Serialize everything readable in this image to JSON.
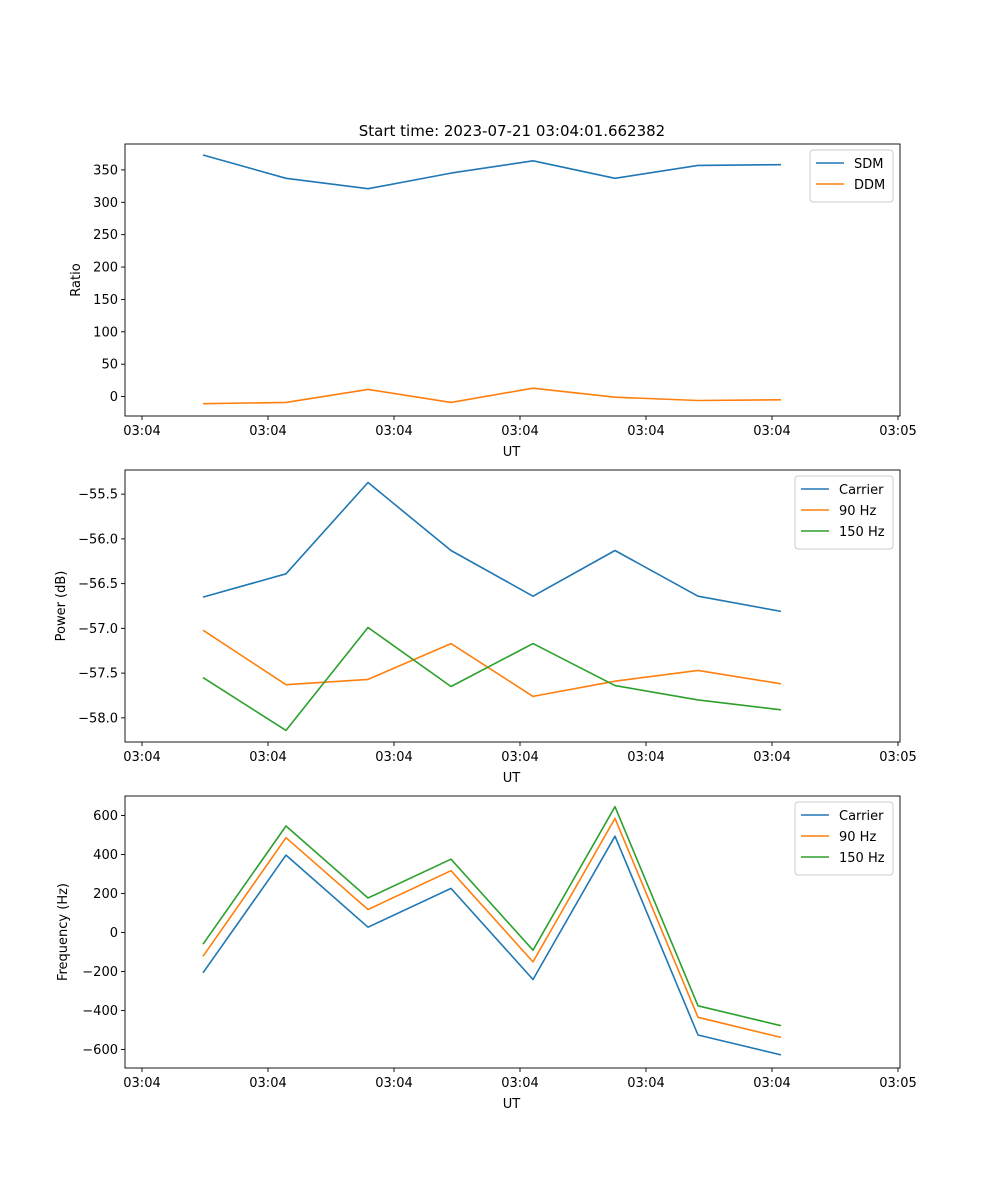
{
  "figure_title": "Start time: 2023-07-21 03:04:01.662382",
  "chart_data": [
    {
      "type": "line",
      "title": "Start time: 2023-07-21 03:04:01.662382",
      "xlabel": "UT",
      "ylabel": "Ratio",
      "x_tick_labels": [
        "03:04",
        "03:04",
        "03:04",
        "03:04",
        "03:04",
        "03:04",
        "03:05"
      ],
      "y_ticks": [
        0,
        50,
        100,
        150,
        200,
        250,
        300,
        350
      ],
      "y_tick_labels": [
        "0",
        "50",
        "100",
        "150",
        "200",
        "250",
        "300",
        "350"
      ],
      "ylim": [
        -30,
        390
      ],
      "legend": "top-right",
      "series": [
        {
          "name": "SDM",
          "color": "#1f77b4",
          "values": [
            373,
            337,
            321,
            345,
            364,
            337,
            357,
            358
          ]
        },
        {
          "name": "DDM",
          "color": "#ff7f0e",
          "values": [
            -11,
            -9,
            11,
            -9,
            13,
            -1,
            -6,
            -5
          ]
        }
      ]
    },
    {
      "type": "line",
      "title": "",
      "xlabel": "UT",
      "ylabel": "Power (dB)",
      "x_tick_labels": [
        "03:04",
        "03:04",
        "03:04",
        "03:04",
        "03:04",
        "03:04",
        "03:05"
      ],
      "y_ticks": [
        -58.0,
        -57.5,
        -57.0,
        -56.5,
        -56.0,
        -55.5
      ],
      "y_tick_labels": [
        "−58.0",
        "−57.5",
        "−57.0",
        "−56.5",
        "−56.0",
        "−55.5"
      ],
      "ylim": [
        -58.27,
        -55.23
      ],
      "legend": "top-right",
      "series": [
        {
          "name": "Carrier",
          "color": "#1f77b4",
          "values": [
            -56.65,
            -56.39,
            -55.37,
            -56.13,
            -56.64,
            -56.13,
            -56.64,
            -56.81
          ]
        },
        {
          "name": "90 Hz",
          "color": "#ff7f0e",
          "values": [
            -57.02,
            -57.63,
            -57.57,
            -57.17,
            -57.76,
            -57.59,
            -57.47,
            -57.62
          ]
        },
        {
          "name": "150 Hz",
          "color": "#2ca02c",
          "values": [
            -57.55,
            -58.14,
            -56.99,
            -57.65,
            -57.17,
            -57.64,
            -57.8,
            -57.91
          ]
        }
      ]
    },
    {
      "type": "line",
      "title": "",
      "xlabel": "UT",
      "ylabel": "Frequency (Hz)",
      "x_tick_labels": [
        "03:04",
        "03:04",
        "03:04",
        "03:04",
        "03:04",
        "03:04",
        "03:05"
      ],
      "y_ticks": [
        -600,
        -400,
        -200,
        0,
        200,
        400,
        600
      ],
      "y_tick_labels": [
        "−600",
        "−400",
        "−200",
        "0",
        "200",
        "400",
        "600"
      ],
      "ylim": [
        -695,
        700
      ],
      "legend": "top-right",
      "series": [
        {
          "name": "Carrier",
          "color": "#1f77b4",
          "values": [
            -207,
            397,
            27,
            226,
            -241,
            494,
            -526,
            -628
          ]
        },
        {
          "name": "90 Hz",
          "color": "#ff7f0e",
          "values": [
            -122,
            486,
            118,
            317,
            -151,
            585,
            -435,
            -538
          ]
        },
        {
          "name": "150 Hz",
          "color": "#2ca02c",
          "values": [
            -60,
            546,
            177,
            376,
            -91,
            645,
            -376,
            -478
          ]
        }
      ]
    }
  ]
}
